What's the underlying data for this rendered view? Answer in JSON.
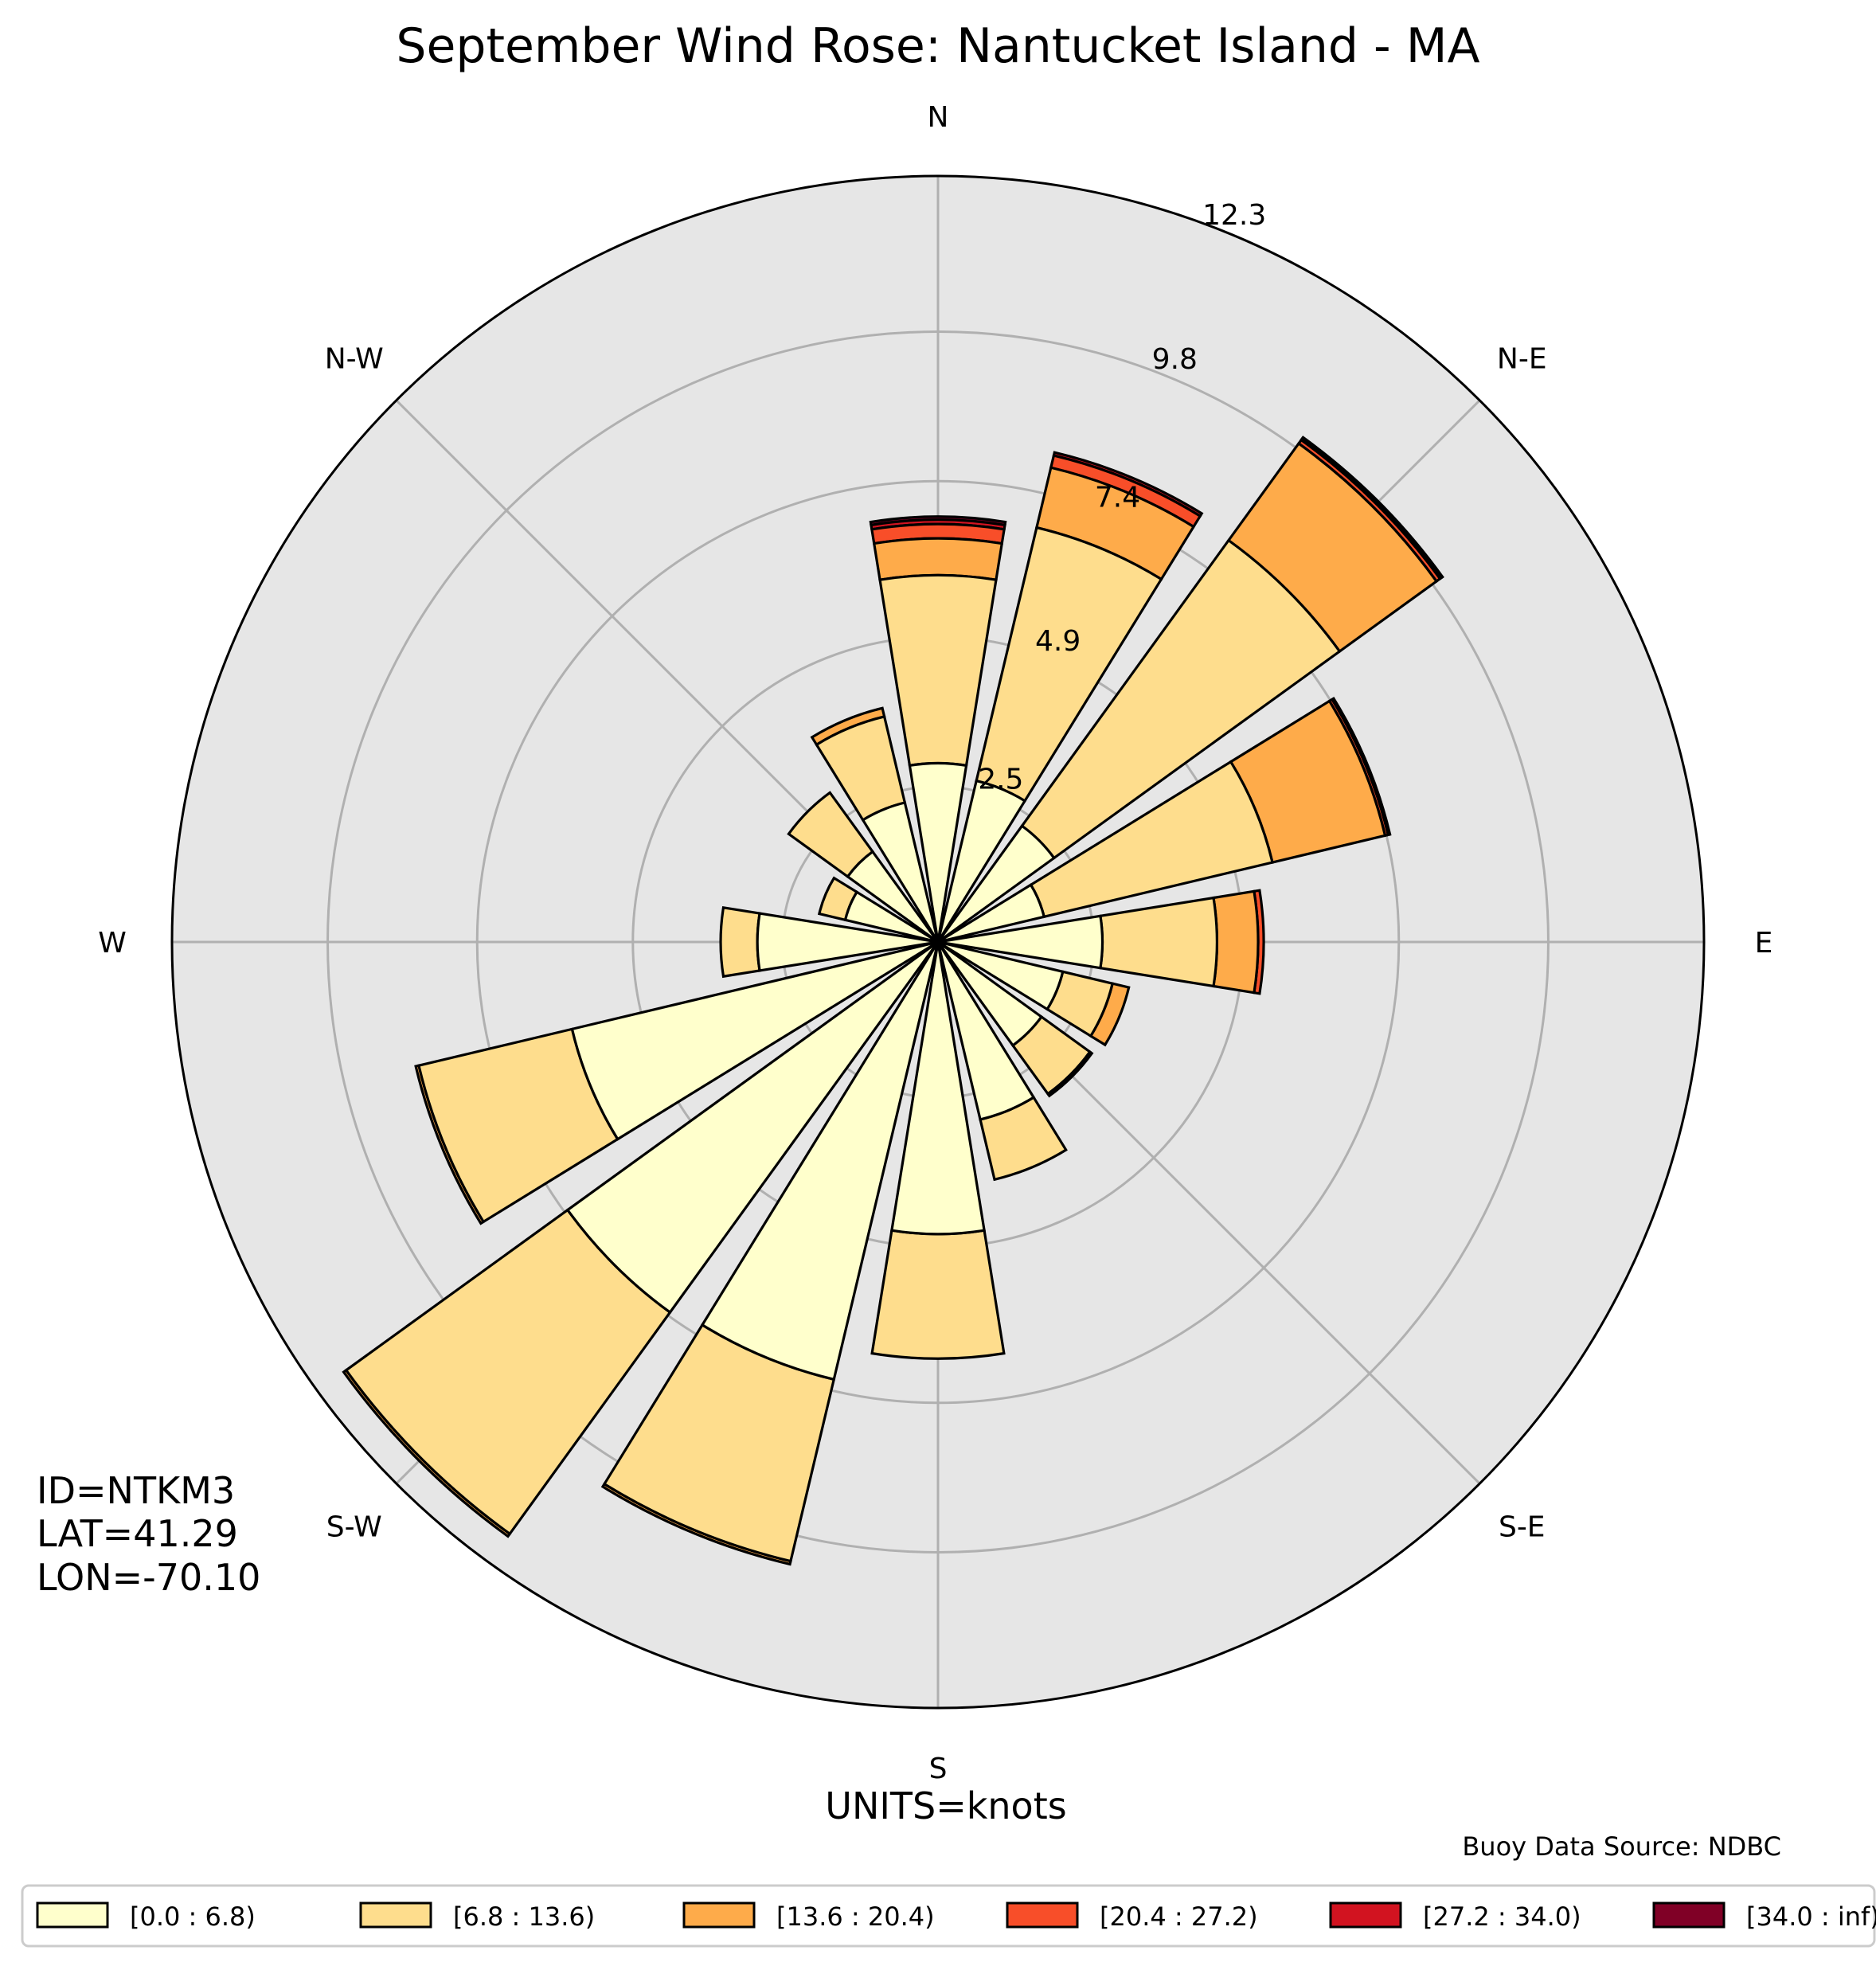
{
  "chart_data": {
    "type": "wind_rose",
    "title": "September Wind Rose: Nantucket Island - MA",
    "direction_labels": [
      "N",
      "N-E",
      "E",
      "S-E",
      "S",
      "S-W",
      "W",
      "N-W"
    ],
    "radial_ticks": [
      2.5,
      4.9,
      7.4,
      9.8,
      12.3
    ],
    "rmax": 12.3,
    "units_label": "UNITS=knots",
    "station_lines": [
      "ID=NTKM3",
      "LAT=41.29",
      "LON=-70.10"
    ],
    "source_label": "Buoy Data Source: NDBC",
    "legend_position": "bottom",
    "bins": [
      {
        "label": "[0.0 : 6.8)",
        "color": "#ffffcc"
      },
      {
        "label": "[6.8 : 13.6)",
        "color": "#fedd8d"
      },
      {
        "label": "[13.6 : 20.4)",
        "color": "#feab4a"
      },
      {
        "label": "[20.4 : 27.2)",
        "color": "#f84e29"
      },
      {
        "label": "[27.2 : 34.0)",
        "color": "#d21320"
      },
      {
        "label": "[34.0 : inf)",
        "color": "#800026"
      }
    ],
    "series": [
      {
        "direction_deg": 0,
        "cumulative": [
          2.87,
          5.89,
          6.48,
          6.71,
          6.78,
          6.83
        ]
      },
      {
        "direction_deg": 22.5,
        "cumulative": [
          2.66,
          6.84,
          7.83,
          8.03,
          8.08,
          8.08
        ]
      },
      {
        "direction_deg": 45,
        "cumulative": [
          2.3,
          7.96,
          9.88,
          9.95,
          9.99,
          10.0
        ]
      },
      {
        "direction_deg": 67.5,
        "cumulative": [
          1.75,
          5.52,
          7.38,
          7.43,
          7.46,
          7.46
        ]
      },
      {
        "direction_deg": 90,
        "cumulative": [
          2.64,
          4.48,
          5.14,
          5.23,
          5.23,
          5.23
        ]
      },
      {
        "direction_deg": 112.5,
        "cumulative": [
          2.06,
          2.88,
          3.15,
          3.15,
          3.15,
          3.15
        ]
      },
      {
        "direction_deg": 135,
        "cumulative": [
          2.05,
          3.01,
          3.05,
          3.05,
          3.05,
          3.05
        ]
      },
      {
        "direction_deg": 157.5,
        "cumulative": [
          2.93,
          3.92,
          3.92,
          3.92,
          3.92,
          3.92
        ]
      },
      {
        "direction_deg": 180,
        "cumulative": [
          4.69,
          6.69,
          6.69,
          6.69,
          6.69,
          6.69
        ]
      },
      {
        "direction_deg": 202.5,
        "cumulative": [
          7.22,
          10.22,
          10.27,
          10.27,
          10.27,
          10.27
        ]
      },
      {
        "direction_deg": 225,
        "cumulative": [
          7.34,
          11.73,
          11.78,
          11.78,
          11.78,
          11.78
        ]
      },
      {
        "direction_deg": 247.5,
        "cumulative": [
          6.04,
          8.57,
          8.62,
          8.62,
          8.62,
          8.62
        ]
      },
      {
        "direction_deg": 270,
        "cumulative": [
          2.9,
          3.49,
          3.49,
          3.49,
          3.49,
          3.49
        ]
      },
      {
        "direction_deg": 292.5,
        "cumulative": [
          1.53,
          1.96,
          1.96,
          1.96,
          1.96,
          1.96
        ]
      },
      {
        "direction_deg": 315,
        "cumulative": [
          1.79,
          2.96,
          2.96,
          2.96,
          2.96,
          2.96
        ]
      },
      {
        "direction_deg": 337.5,
        "cumulative": [
          2.3,
          3.72,
          3.86,
          3.86,
          3.86,
          3.86
        ]
      }
    ]
  }
}
